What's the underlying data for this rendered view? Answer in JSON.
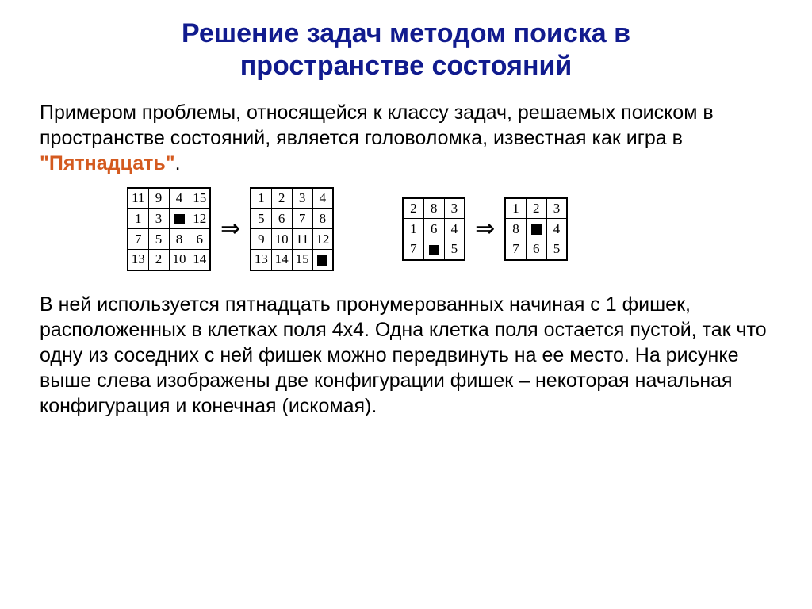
{
  "title": {
    "line1": "Решение задач методом поиска в",
    "line2": "пространстве состояний",
    "color": "#111b8e",
    "fontsize": 34
  },
  "intro": {
    "pre": "Примером проблемы, относящейся к  классу задач, решаемых поиском в пространстве состояний, является головоломка, известная как игра в ",
    "highlight": "\"Пятнадцать\"",
    "post": ".",
    "fontsize": 25,
    "highlight_color": "#d45a1f"
  },
  "arrow_glyph": "⇒",
  "puzzle4": {
    "cell_size": 26,
    "black_size": 13,
    "initial": [
      [
        "11",
        "9",
        "4",
        "15"
      ],
      [
        "1",
        "3",
        "■",
        "12"
      ],
      [
        "7",
        "5",
        "8",
        "6"
      ],
      [
        "13",
        "2",
        "10",
        "14"
      ]
    ],
    "goal": [
      [
        "1",
        "2",
        "3",
        "4"
      ],
      [
        "5",
        "6",
        "7",
        "8"
      ],
      [
        "9",
        "10",
        "11",
        "12"
      ],
      [
        "13",
        "14",
        "15",
        "■"
      ]
    ]
  },
  "puzzle3": {
    "cell_size": 26,
    "black_size": 13,
    "initial": [
      [
        "2",
        "8",
        "3"
      ],
      [
        "1",
        "6",
        "4"
      ],
      [
        "7",
        "■",
        "5"
      ]
    ],
    "goal": [
      [
        "1",
        "2",
        "3"
      ],
      [
        "8",
        "■",
        "4"
      ],
      [
        "7",
        "6",
        "5"
      ]
    ]
  },
  "body": {
    "text": "В ней используется пятнадцать пронумерованных начиная с 1 фишек, расположенных в клетках поля 4х4. Одна клетка поля остается пустой, так что одну из соседних с ней фишек можно передвинуть на ее место. На рисунке выше слева изображены две конфигурации фишек – некоторая начальная конфигурация и конечная (искомая).",
    "fontsize": 25
  }
}
